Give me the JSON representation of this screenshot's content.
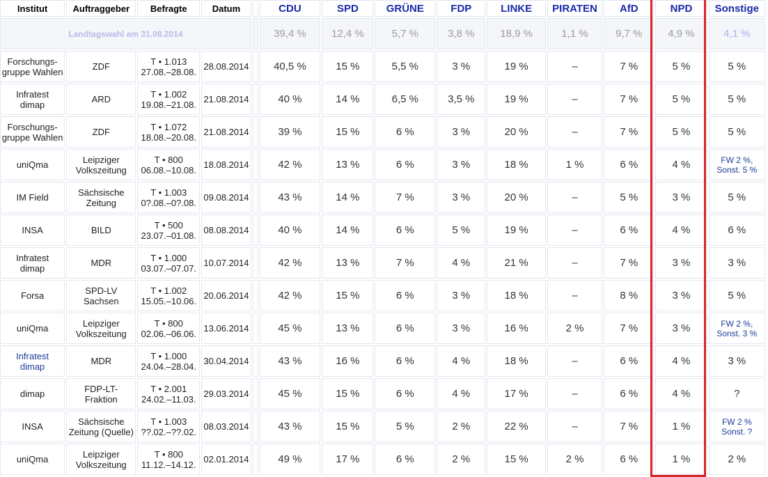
{
  "headers": {
    "institut": "Institut",
    "auftraggeber": "Auftraggeber",
    "befragte": "Befragte",
    "datum": "Datum",
    "parties": [
      "CDU",
      "SPD",
      "GRÜNE",
      "FDP",
      "LINKE",
      "PIRATEN",
      "AfD",
      "NPD",
      "Sonstige"
    ]
  },
  "result": {
    "label": "Landtagswahl am 31.08.2014",
    "values": [
      "39,4 %",
      "12,4 %",
      "5,7 %",
      "3,8 %",
      "18,9 %",
      "1,1 %",
      "9,7 %",
      "4,9 %",
      "4,1 %"
    ]
  },
  "polls": [
    {
      "institut": "Forschungs-\ngruppe Wahlen",
      "auftraggeber": "ZDF",
      "befragte": "T • 1.013\n27.08.–28.08.",
      "datum": "28.08.2014",
      "values": [
        "40,5 %",
        "15 %",
        "5,5 %",
        "3 %",
        "19 %",
        "–",
        "7 %",
        "5 %",
        "5 %"
      ]
    },
    {
      "institut": "Infratest\ndimap",
      "auftraggeber": "ARD",
      "befragte": "T • 1.002\n19.08.–21.08.",
      "datum": "21.08.2014",
      "values": [
        "40 %",
        "14 %",
        "6,5 %",
        "3,5 %",
        "19 %",
        "–",
        "7 %",
        "5 %",
        "5 %"
      ]
    },
    {
      "institut": "Forschungs-\ngruppe Wahlen",
      "auftraggeber": "ZDF",
      "befragte": "T • 1.072\n18.08.–20.08.",
      "datum": "21.08.2014",
      "values": [
        "39 %",
        "15 %",
        "6 %",
        "3 %",
        "20 %",
        "–",
        "7 %",
        "5 %",
        "5 %"
      ]
    },
    {
      "institut": "uniQma",
      "auftraggeber": "Leipziger\nVolkszeitung",
      "befragte": "T • 800\n06.08.–10.08.",
      "datum": "18.08.2014",
      "values": [
        "42 %",
        "13 %",
        "6 %",
        "3 %",
        "18 %",
        "1 %",
        "6 %",
        "4 %",
        "FW 2 %,\nSonst. 5 %"
      ]
    },
    {
      "institut": "IM Field",
      "auftraggeber": "Sächsische\nZeitung",
      "befragte": "T • 1.003\n0?.08.–0?.08.",
      "datum": "09.08.2014",
      "values": [
        "43 %",
        "14 %",
        "7 %",
        "3 %",
        "20 %",
        "–",
        "5 %",
        "3 %",
        "5 %"
      ]
    },
    {
      "institut": "INSA",
      "auftraggeber": "BILD",
      "befragte": "T • 500\n23.07.–01.08.",
      "datum": "08.08.2014",
      "values": [
        "40 %",
        "14 %",
        "6 %",
        "5 %",
        "19 %",
        "–",
        "6 %",
        "4 %",
        "6 %"
      ]
    },
    {
      "institut": "Infratest\ndimap",
      "auftraggeber": "MDR",
      "befragte": "T • 1.000\n03.07.–07.07.",
      "datum": "10.07.2014",
      "values": [
        "42 %",
        "13 %",
        "7 %",
        "4 %",
        "21 %",
        "–",
        "7 %",
        "3 %",
        "3 %"
      ]
    },
    {
      "institut": "Forsa",
      "auftraggeber": "SPD-LV\nSachsen",
      "befragte": "T • 1.002\n15.05.–10.06.",
      "datum": "20.06.2014",
      "values": [
        "42 %",
        "15 %",
        "6 %",
        "3 %",
        "18 %",
        "–",
        "8 %",
        "3 %",
        "5 %"
      ]
    },
    {
      "institut": "uniQma",
      "auftraggeber": "Leipziger\nVolkszeitung",
      "befragte": "T • 800\n02.06.–06.06.",
      "datum": "13.06.2014",
      "values": [
        "45 %",
        "13 %",
        "6 %",
        "3 %",
        "16 %",
        "2 %",
        "7 %",
        "3 %",
        "FW 2 %,\nSonst. 3 %"
      ]
    },
    {
      "institut": "Infratest\ndimap",
      "auftraggeber": "MDR",
      "befragte": "T • 1.000\n24.04.–28.04.",
      "datum": "30.04.2014",
      "values": [
        "43 %",
        "16 %",
        "6 %",
        "4 %",
        "18 %",
        "–",
        "6 %",
        "4 %",
        "3 %"
      ],
      "institut_link": true
    },
    {
      "institut": "dimap",
      "auftraggeber": "FDP-LT-\nFraktion",
      "befragte": "T • 2.001\n24.02.–11.03.",
      "datum": "29.03.2014",
      "values": [
        "45 %",
        "15 %",
        "6 %",
        "4 %",
        "17 %",
        "–",
        "6 %",
        "4 %",
        "?"
      ]
    },
    {
      "institut": "INSA",
      "auftraggeber": "Sächsische\nZeitung (Quelle)",
      "befragte": "T • 1.003\n??.02.–??.02.",
      "datum": "08.03.2014",
      "values": [
        "43 %",
        "15 %",
        "5 %",
        "2 %",
        "22 %",
        "–",
        "7 %",
        "1 %",
        "FW 2 %\nSonst. ?"
      ]
    },
    {
      "institut": "uniQma",
      "auftraggeber": "Leipziger\nVolkszeitung",
      "befragte": "T • 800\n11.12.–14.12.",
      "datum": "02.01.2014",
      "values": [
        "49 %",
        "17 %",
        "6 %",
        "2 %",
        "15 %",
        "2 %",
        "6 %",
        "1 %",
        "2 %"
      ]
    }
  ],
  "colors": {
    "party_header": "#1a2aa8",
    "highlight_frame": "#d8232a",
    "grid": "#e1e7ef"
  }
}
